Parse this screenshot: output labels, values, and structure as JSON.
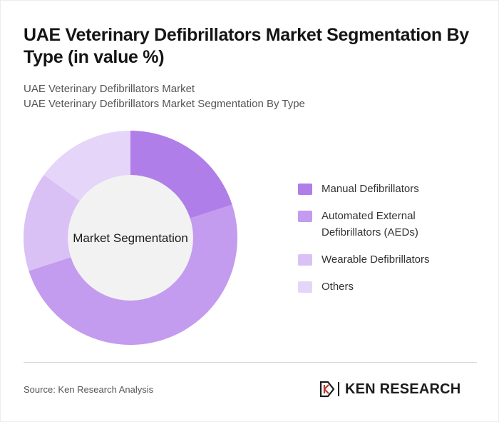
{
  "header": {
    "title": "UAE Veterinary Defibrillators Market Segmentation By Type (in value %)",
    "subtitle_line1": "UAE Veterinary Defibrillators Market",
    "subtitle_line2": "UAE Veterinary Defibrillators Market Segmentation By Type"
  },
  "chart_data": {
    "type": "pie",
    "variant": "donut",
    "center_label": "Market Segmentation",
    "categories": [
      "Manual Defibrillators",
      "Automated External Defibrillators (AEDs)",
      "Wearable Defibrillators",
      "Others"
    ],
    "values": [
      20,
      50,
      15,
      15
    ],
    "colors": [
      "#b07ee8",
      "#c39bef",
      "#d9c1f6",
      "#e5d5f8"
    ],
    "legend_position": "right",
    "legend": [
      {
        "line1": "Manual Defibrillators",
        "line2": ""
      },
      {
        "line1": "Automated External",
        "line2": "Defibrillators (AEDs)"
      },
      {
        "line1": "Wearable Defibrillators",
        "line2": ""
      },
      {
        "line1": "Others",
        "line2": ""
      }
    ]
  },
  "footer": {
    "source": "Source: Ken Research Analysis",
    "logo_text": "KEN RESEARCH",
    "logo_icon": "ken-research-logo-icon"
  },
  "colors": {
    "donut_hole": "#f2f2f2",
    "text_dark": "#151515"
  }
}
